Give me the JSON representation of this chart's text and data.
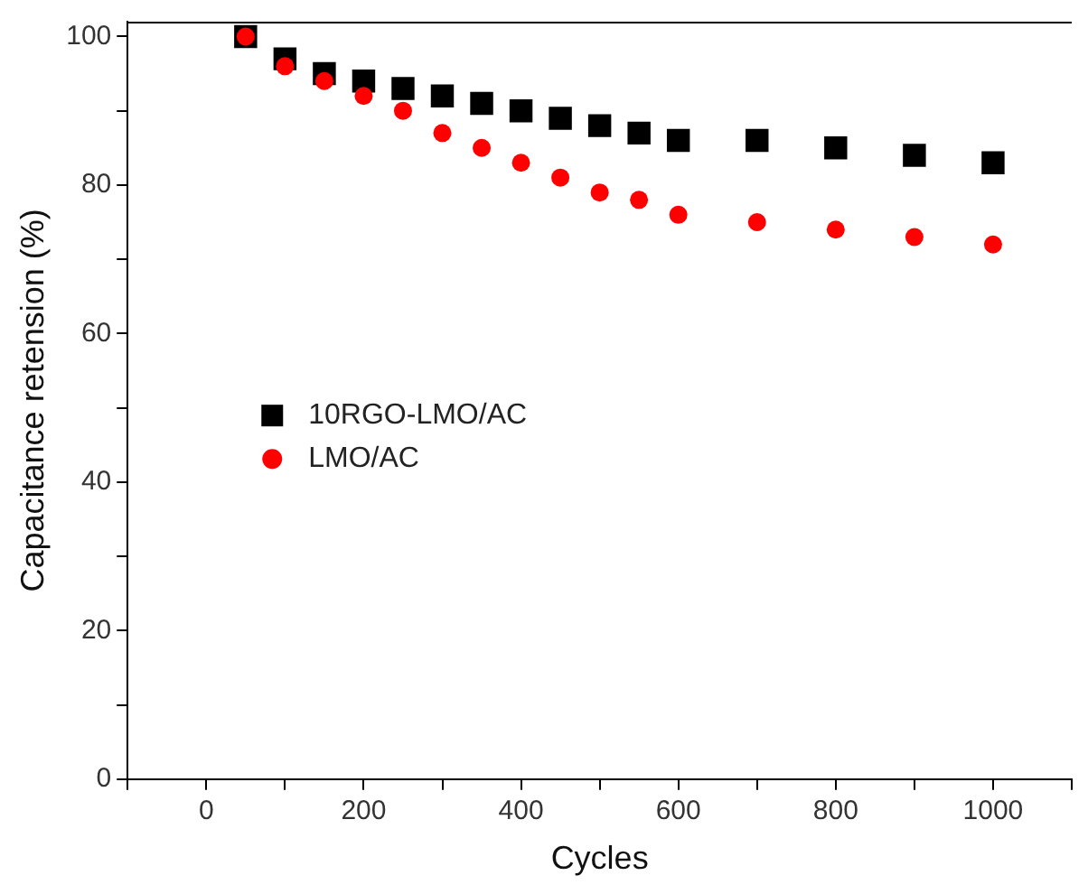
{
  "chart_data": {
    "type": "scatter",
    "xlabel": "Cycles",
    "ylabel": "Capacitance retension (%)",
    "x": [
      50,
      100,
      150,
      200,
      250,
      300,
      350,
      400,
      450,
      500,
      550,
      600,
      700,
      800,
      900,
      1000
    ],
    "series": [
      {
        "name": "10RGO-LMO/AC",
        "color": "#000000",
        "marker": "square",
        "values": [
          100,
          97,
          95,
          94,
          93,
          92,
          91,
          90,
          89,
          88,
          87,
          86,
          86,
          85,
          84,
          83
        ]
      },
      {
        "name": "LMO/AC",
        "color": "#ff0000",
        "marker": "circle",
        "values": [
          100,
          96,
          94,
          92,
          90,
          87,
          85,
          83,
          81,
          79,
          78,
          76,
          75,
          74,
          73,
          72
        ]
      }
    ],
    "xlim": [
      -100,
      1100
    ],
    "xticks": [
      {
        "value": -100,
        "label": null
      },
      0,
      {
        "value": 100,
        "label": null
      },
      200,
      {
        "value": 300,
        "label": null
      },
      400,
      {
        "value": 500,
        "label": null
      },
      600,
      {
        "value": 700,
        "label": null
      },
      800,
      {
        "value": 900,
        "label": null
      },
      1000,
      {
        "value": 1100,
        "label": null
      }
    ],
    "ylim": [
      0,
      102
    ],
    "yticks": [
      0,
      {
        "value": 10,
        "label": null
      },
      20,
      {
        "value": 30,
        "label": null
      },
      40,
      {
        "value": 50,
        "label": null
      },
      60,
      {
        "value": 70,
        "label": null
      },
      80,
      {
        "value": 90,
        "label": null
      },
      100
    ],
    "grid": false,
    "legend": "left"
  }
}
